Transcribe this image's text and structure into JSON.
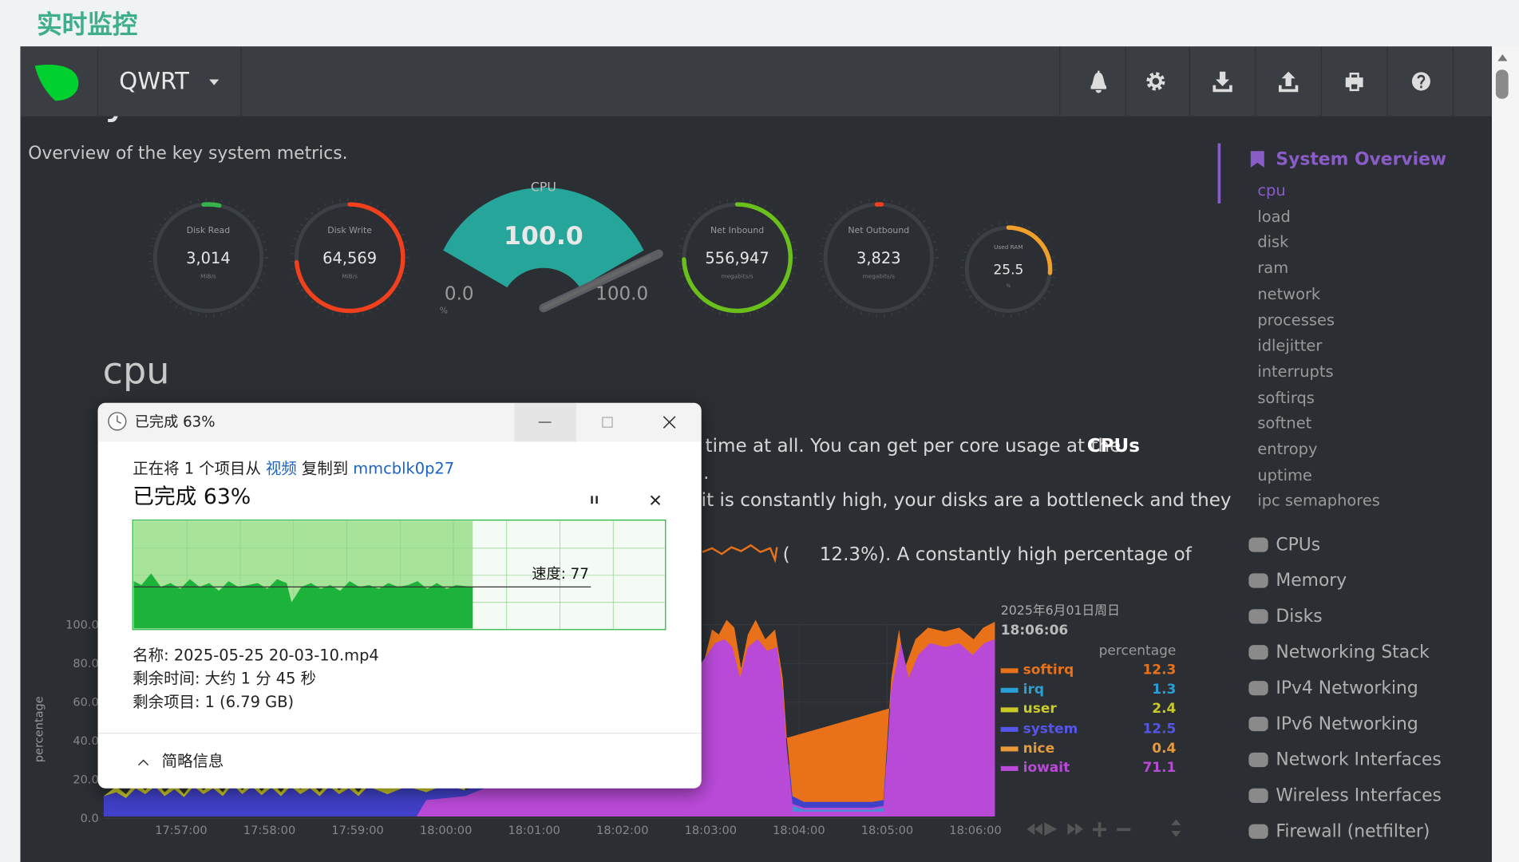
{
  "page_title": "实时监控",
  "navbar": {
    "brand": "QWRT"
  },
  "overview": {
    "heading": "System Overview",
    "subtitle": "Overview of the key system metrics."
  },
  "gauges": [
    {
      "label": "Disk Read",
      "value": "3,014",
      "unit": "MiB/s"
    },
    {
      "label": "Disk Write",
      "value": "64,569",
      "unit": "MiB/s"
    },
    {
      "label": "Net Inbound",
      "value": "556,947",
      "unit": "megabits/s"
    },
    {
      "label": "Net Outbound",
      "value": "3,823",
      "unit": "megabits/s"
    },
    {
      "label": "Used RAM",
      "value": "25.5",
      "unit": "%"
    }
  ],
  "cpu_gauge": {
    "label": "CPU",
    "value": "100.0",
    "min": "0.0",
    "max": "100.0",
    "unit": "%"
  },
  "section": {
    "heading": "cpu",
    "fragments": [
      "time at all. You can get per core usage at the ",
      "CPUs",
      ".",
      "it is constantly high, your disks are a bottleneck and they",
      "(",
      "12.3%). A constantly high percentage of"
    ]
  },
  "chart": {
    "y_label": "percentage",
    "yticks": [
      "100.0",
      "80.0",
      "60.0",
      "40.0",
      "20.0",
      "0.0"
    ],
    "xticks": [
      "17:57:00",
      "17:58:00",
      "17:59:00",
      "18:00:00",
      "18:01:00",
      "18:02:00",
      "18:03:00",
      "18:04:00",
      "18:05:00",
      "18:06:00"
    ],
    "tooltip": {
      "date": "2025年6月01日周日",
      "time": "18:06:06",
      "unit": "percentage",
      "items": [
        {
          "name": "softirq",
          "value": "12.3",
          "color": "#e8711a"
        },
        {
          "name": "irq",
          "value": "1.3",
          "color": "#2a9fd6"
        },
        {
          "name": "user",
          "value": "2.4",
          "color": "#c9c92a"
        },
        {
          "name": "system",
          "value": "12.5",
          "color": "#5555e8"
        },
        {
          "name": "nice",
          "value": "0.4",
          "color": "#e89a3a"
        },
        {
          "name": "iowait",
          "value": "71.1",
          "color": "#b94ad8"
        }
      ]
    }
  },
  "sidebar": {
    "active": "System Overview",
    "subitems": [
      "cpu",
      "load",
      "disk",
      "ram",
      "network",
      "processes",
      "idlejitter",
      "interrupts",
      "softirqs",
      "softnet",
      "entropy",
      "uptime",
      "ipc semaphores"
    ],
    "sections": [
      "CPUs",
      "Memory",
      "Disks",
      "Networking Stack",
      "IPv4 Networking",
      "IPv6 Networking",
      "Network Interfaces",
      "Wireless Interfaces",
      "Firewall (netfilter)"
    ]
  },
  "dialog": {
    "title": "已完成 63%",
    "copy": {
      "prefix": "正在将 1 个项目从",
      "source": "视频",
      "middle": "复制到",
      "destination": "mmcblk0p27"
    },
    "progress": "已完成 63%",
    "speed": "速度: 77",
    "details": [
      "名称: 2025-05-25 20-03-10.mp4",
      "剩余时间: 大约 1 分 45 秒",
      "剩余项目: 1 (6.79 GB)"
    ],
    "footer": "简略信息"
  }
}
